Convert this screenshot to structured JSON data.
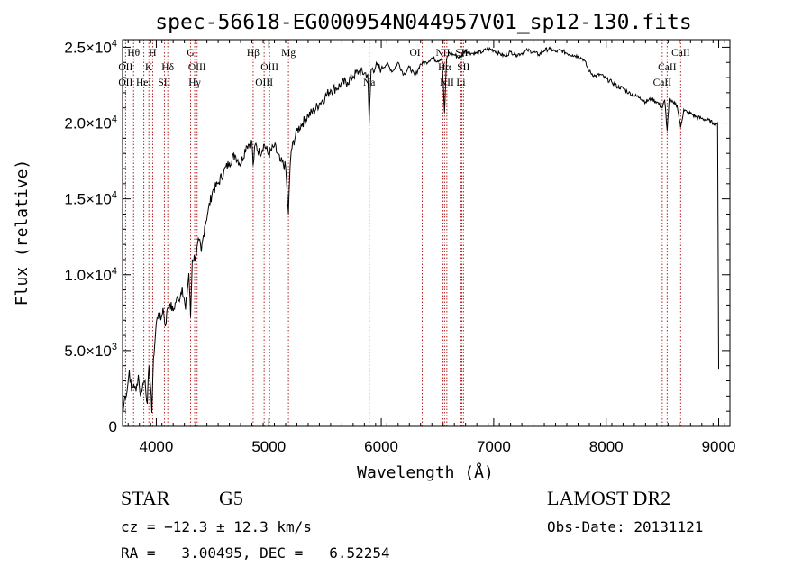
{
  "chart_data": {
    "type": "line",
    "title": "spec-56618-EG000954N044957V01_sp12-130.fits",
    "xlabel": "Wavelength (Å)",
    "ylabel": "Flux (relative)",
    "xlim": [
      3700,
      9100
    ],
    "ylim": [
      0,
      25500
    ],
    "grid": false,
    "x_ticks": [
      {
        "value": 4000,
        "label": "4000"
      },
      {
        "value": 5000,
        "label": "5000"
      },
      {
        "value": 6000,
        "label": "6000"
      },
      {
        "value": 7000,
        "label": "7000"
      },
      {
        "value": 8000,
        "label": "8000"
      },
      {
        "value": 9000,
        "label": "9000"
      }
    ],
    "y_ticks": [
      {
        "value": 0,
        "mant": "0",
        "exp": ""
      },
      {
        "value": 5000,
        "mant": "5.0×10",
        "exp": "3"
      },
      {
        "value": 10000,
        "mant": "1.0×10",
        "exp": "4"
      },
      {
        "value": 15000,
        "mant": "1.5×10",
        "exp": "4"
      },
      {
        "value": 20000,
        "mant": "2.0×10",
        "exp": "4"
      },
      {
        "value": 25000,
        "mant": "2.5×10",
        "exp": "4"
      }
    ],
    "series": [
      {
        "x": [
          3700,
          3720,
          3740,
          3760,
          3780,
          3800,
          3820,
          3840,
          3860,
          3880,
          3900,
          3920,
          3935,
          3950,
          3960,
          3968,
          3975,
          3990,
          4000,
          4020,
          4040,
          4060,
          4080,
          4100,
          4120,
          4150,
          4180,
          4200,
          4230,
          4260,
          4290,
          4305,
          4320,
          4350,
          4380,
          4400,
          4430,
          4460,
          4500,
          4550,
          4600,
          4650,
          4700,
          4750,
          4800,
          4850,
          4861,
          4880,
          4920,
          4960,
          5000,
          5050,
          5100,
          5150,
          5175,
          5190,
          5200,
          5250,
          5300,
          5350,
          5400,
          5450,
          5500,
          5550,
          5600,
          5650,
          5700,
          5750,
          5800,
          5850,
          5880,
          5893,
          5910,
          5950,
          6000,
          6050,
          6100,
          6150,
          6200,
          6250,
          6300,
          6350,
          6400,
          6450,
          6500,
          6540,
          6563,
          6580,
          6600,
          6650,
          6700,
          6750,
          6800,
          6850,
          6900,
          6950,
          7000,
          7050,
          7100,
          7150,
          7200,
          7250,
          7300,
          7350,
          7400,
          7450,
          7500,
          7550,
          7600,
          7650,
          7700,
          7750,
          7800,
          7850,
          7900,
          7950,
          8000,
          8050,
          8100,
          8150,
          8200,
          8250,
          8300,
          8350,
          8400,
          8450,
          8498,
          8520,
          8542,
          8560,
          8580,
          8600,
          8630,
          8662,
          8690,
          8720,
          8760,
          8800,
          8850,
          8900,
          8950,
          8990,
          9000
        ],
        "y": [
          600,
          2000,
          2300,
          3700,
          2300,
          2800,
          2300,
          3400,
          2000,
          2800,
          3000,
          1500,
          4000,
          2500,
          900,
          3000,
          4500,
          5800,
          6800,
          7500,
          7000,
          7800,
          6600,
          7800,
          8100,
          7600,
          8400,
          8300,
          9200,
          7700,
          10100,
          7200,
          11000,
          11200,
          12300,
          11500,
          13200,
          14200,
          15500,
          16000,
          16800,
          17400,
          17900,
          17300,
          18500,
          18800,
          17200,
          18600,
          18000,
          18600,
          17900,
          18500,
          17500,
          17100,
          14000,
          17200,
          18200,
          19500,
          20000,
          20500,
          20800,
          21300,
          21700,
          22200,
          22300,
          22600,
          22700,
          23100,
          23400,
          23300,
          23200,
          20000,
          23500,
          23700,
          23600,
          23900,
          23400,
          24000,
          23200,
          23700,
          23100,
          23900,
          24000,
          24300,
          24100,
          24300,
          20700,
          24200,
          24600,
          24500,
          24300,
          24800,
          24600,
          24600,
          24700,
          24900,
          24800,
          24600,
          24400,
          24700,
          24500,
          24600,
          24800,
          24700,
          24500,
          24800,
          24900,
          24700,
          24800,
          24600,
          24500,
          24400,
          24200,
          23400,
          23100,
          23200,
          22900,
          22700,
          22400,
          22300,
          22000,
          21800,
          21700,
          21400,
          21600,
          21400,
          21000,
          21500,
          19500,
          21600,
          21400,
          21300,
          21200,
          19700,
          20900,
          20700,
          20600,
          20400,
          20300,
          20200,
          20000,
          20000,
          3800
        ]
      }
    ],
    "spectral_lines": [
      {
        "name": "Hθ",
        "wavelength": 3798,
        "row": 1
      },
      {
        "name": "OII",
        "wavelength": 3727,
        "row": 2
      },
      {
        "name": "OII",
        "wavelength": 3727,
        "row": 3
      },
      {
        "name": "H",
        "wavelength": 3968,
        "row": 1
      },
      {
        "name": "K",
        "wavelength": 3934,
        "row": 2
      },
      {
        "name": "HeI",
        "wavelength": 3889,
        "row": 3
      },
      {
        "name": "Hδ",
        "wavelength": 4102,
        "row": 2
      },
      {
        "name": "SII",
        "wavelength": 4072,
        "row": 3
      },
      {
        "name": "G",
        "wavelength": 4305,
        "row": 1
      },
      {
        "name": "OIII",
        "wavelength": 4363,
        "row": 2
      },
      {
        "name": "Hγ",
        "wavelength": 4341,
        "row": 3
      },
      {
        "name": "Hβ",
        "wavelength": 4861,
        "row": 1
      },
      {
        "name": "OIII",
        "wavelength": 5007,
        "row": 2
      },
      {
        "name": "OIII",
        "wavelength": 4959,
        "row": 3
      },
      {
        "name": "Mg",
        "wavelength": 5175,
        "row": 1
      },
      {
        "name": "Na",
        "wavelength": 5893,
        "row": 3
      },
      {
        "name": "OI",
        "wavelength": 6300,
        "row": 1
      },
      {
        "name": "NII",
        "wavelength": 6548,
        "row": 1
      },
      {
        "name": "SII",
        "wavelength": 6716,
        "row": 1
      },
      {
        "name": "Hα",
        "wavelength": 6563,
        "row": 2
      },
      {
        "name": "SII",
        "wavelength": 6731,
        "row": 2
      },
      {
        "name": "NII",
        "wavelength": 6583,
        "row": 3
      },
      {
        "name": "Li",
        "wavelength": 6708,
        "row": 3
      },
      {
        "name": "CaII",
        "wavelength": 8662,
        "row": 1
      },
      {
        "name": "CaII",
        "wavelength": 8542,
        "row": 2
      },
      {
        "name": "CaII",
        "wavelength": 8498,
        "row": 3
      }
    ],
    "marker_lines": [
      3727,
      3798,
      3889,
      3934,
      3968,
      4072,
      4102,
      4305,
      4341,
      4363,
      4861,
      4959,
      5007,
      5175,
      5893,
      6300,
      6364,
      6548,
      6563,
      6583,
      6708,
      6716,
      6731,
      8498,
      8542,
      8662
    ],
    "marker_color": "#b22222"
  },
  "info": {
    "object_type": "STAR",
    "subclass": "G5",
    "survey": "LAMOST DR2",
    "cz": "cz = −12.3 ± 12.3 km/s",
    "obs_date": "Obs-Date: 20131121",
    "coords": "RA =   3.00495, DEC =   6.52254"
  }
}
